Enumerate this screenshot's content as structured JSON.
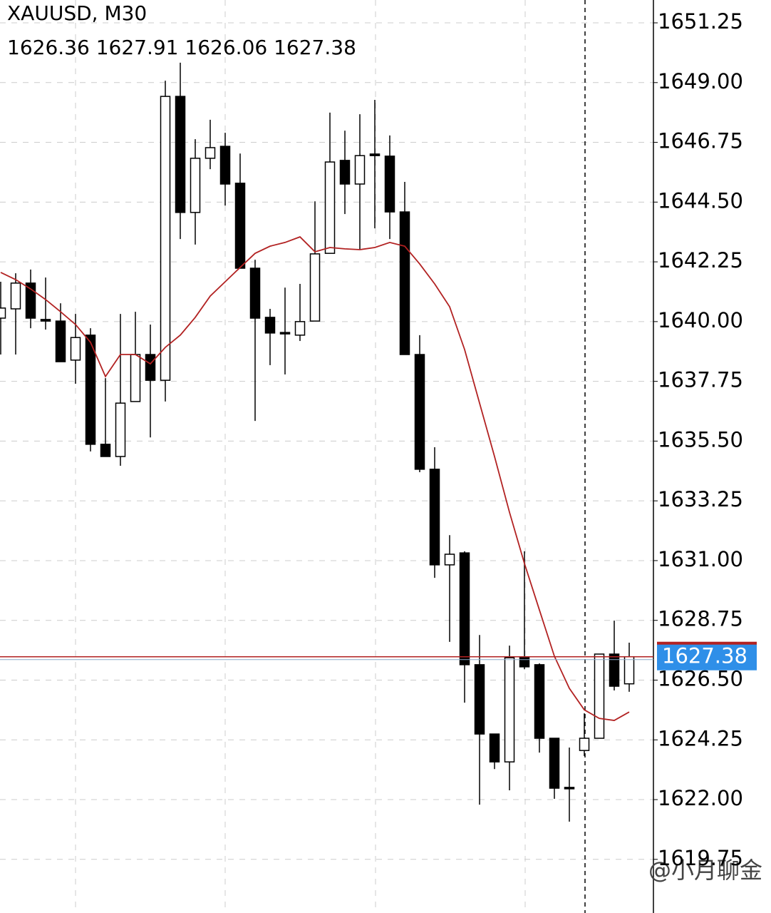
{
  "chart_data": {
    "type": "candlestick",
    "title": "XAUUSD, M30",
    "open": [
      1640.13,
      1640.48,
      1641.45,
      1640.08,
      1640.02,
      1638.55,
      1639.49,
      1635.38,
      1634.92,
      1636.99,
      1638.76,
      1637.79,
      1648.48,
      1644.11,
      1646.15,
      1646.6,
      1645.21,
      1642.01,
      1640.16,
      1639.59,
      1639.49,
      1640.02,
      1642.57,
      1646.07,
      1645.18,
      1646.31,
      1646.23,
      1644.13,
      1638.76,
      1634.44,
      1630.84,
      1631.29,
      1627.08,
      1624.47,
      1623.42,
      1627.34,
      1627.08,
      1624.31,
      1622.46,
      1623.85,
      1624.31,
      1627.48,
      1626.36
    ],
    "high": [
      1641.5,
      1641.82,
      1641.96,
      1641.66,
      1640.69,
      1640.29,
      1639.75,
      1637.87,
      1640.29,
      1640.37,
      1639.89,
      1649.07,
      1649.75,
      1646.87,
      1647.6,
      1647.11,
      1646.33,
      1642.33,
      1640.48,
      1641.28,
      1641.42,
      1644.53,
      1647.87,
      1647.19,
      1647.81,
      1648.35,
      1647.01,
      1645.26,
      1639.49,
      1635.27,
      1631.96,
      1631.35,
      1628.2,
      1624.47,
      1627.8,
      1631.35,
      1627.13,
      1624.31,
      1623.96,
      1625.25,
      1627.48,
      1628.74,
      1627.91
    ],
    "low": [
      1638.76,
      1638.76,
      1639.75,
      1639.7,
      1638.49,
      1637.66,
      1635.11,
      1634.92,
      1634.57,
      1636.99,
      1635.64,
      1636.99,
      1643.11,
      1642.9,
      1645.74,
      1644.37,
      1642.01,
      1636.26,
      1638.36,
      1638.01,
      1639.27,
      1640.02,
      1642.57,
      1644.05,
      1642.71,
      1643.51,
      1643.11,
      1638.76,
      1634.33,
      1630.35,
      1627.94,
      1625.65,
      1621.81,
      1623.15,
      1622.35,
      1626.91,
      1623.77,
      1622.03,
      1621.17,
      1623.64,
      1624.31,
      1626.11,
      1626.06
    ],
    "close": [
      1640.51,
      1641.45,
      1640.13,
      1640.02,
      1638.49,
      1639.4,
      1635.38,
      1634.92,
      1636.93,
      1638.76,
      1637.79,
      1648.48,
      1644.11,
      1646.15,
      1646.55,
      1645.18,
      1642.01,
      1640.13,
      1639.57,
      1639.54,
      1640.0,
      1642.55,
      1646.01,
      1645.18,
      1646.25,
      1646.25,
      1644.13,
      1638.76,
      1634.44,
      1630.84,
      1631.24,
      1627.08,
      1624.47,
      1623.42,
      1627.34,
      1627.0,
      1624.31,
      1622.43,
      1622.43,
      1624.31,
      1627.48,
      1626.27,
      1627.38
    ],
    "up_color": "#ffffff",
    "down_color": "#000000",
    "ma": {
      "color": "#b22222",
      "values": [
        1641.85,
        1641.58,
        1641.23,
        1640.83,
        1640.37,
        1639.89,
        1639.22,
        1637.93,
        1638.76,
        1638.76,
        1638.41,
        1639.03,
        1639.49,
        1640.16,
        1640.96,
        1641.5,
        1642.04,
        1642.57,
        1642.84,
        1642.98,
        1643.19,
        1642.63,
        1642.79,
        1642.74,
        1642.71,
        1642.79,
        1642.98,
        1642.84,
        1642.17,
        1641.42,
        1640.56,
        1638.95,
        1636.93,
        1634.92,
        1632.82,
        1630.89,
        1629.14,
        1627.4,
        1626.19,
        1625.38,
        1625.06,
        1624.98,
        1625.3
      ]
    },
    "price_tag_color": "#2f8fe8",
    "ylim": [
      1617.73,
      1652.11
    ],
    "yticks": [
      1651.25,
      {
        "value": 1649,
        "label": "1649.00"
      },
      1646.75,
      {
        "value": 1644.5,
        "label": "1644.50"
      },
      1642.25,
      {
        "value": 1640,
        "label": "1640.00"
      },
      1637.75,
      {
        "value": 1635.5,
        "label": "1635.50"
      },
      1633.25,
      {
        "value": 1631,
        "label": "1631.00"
      },
      1628.75,
      {
        "value": 1626.5,
        "label": "1626.50"
      },
      1624.25,
      {
        "value": 1622,
        "label": "1622.00"
      },
      1619.75
    ],
    "grid": true,
    "watermark": "@小月聊金"
  }
}
